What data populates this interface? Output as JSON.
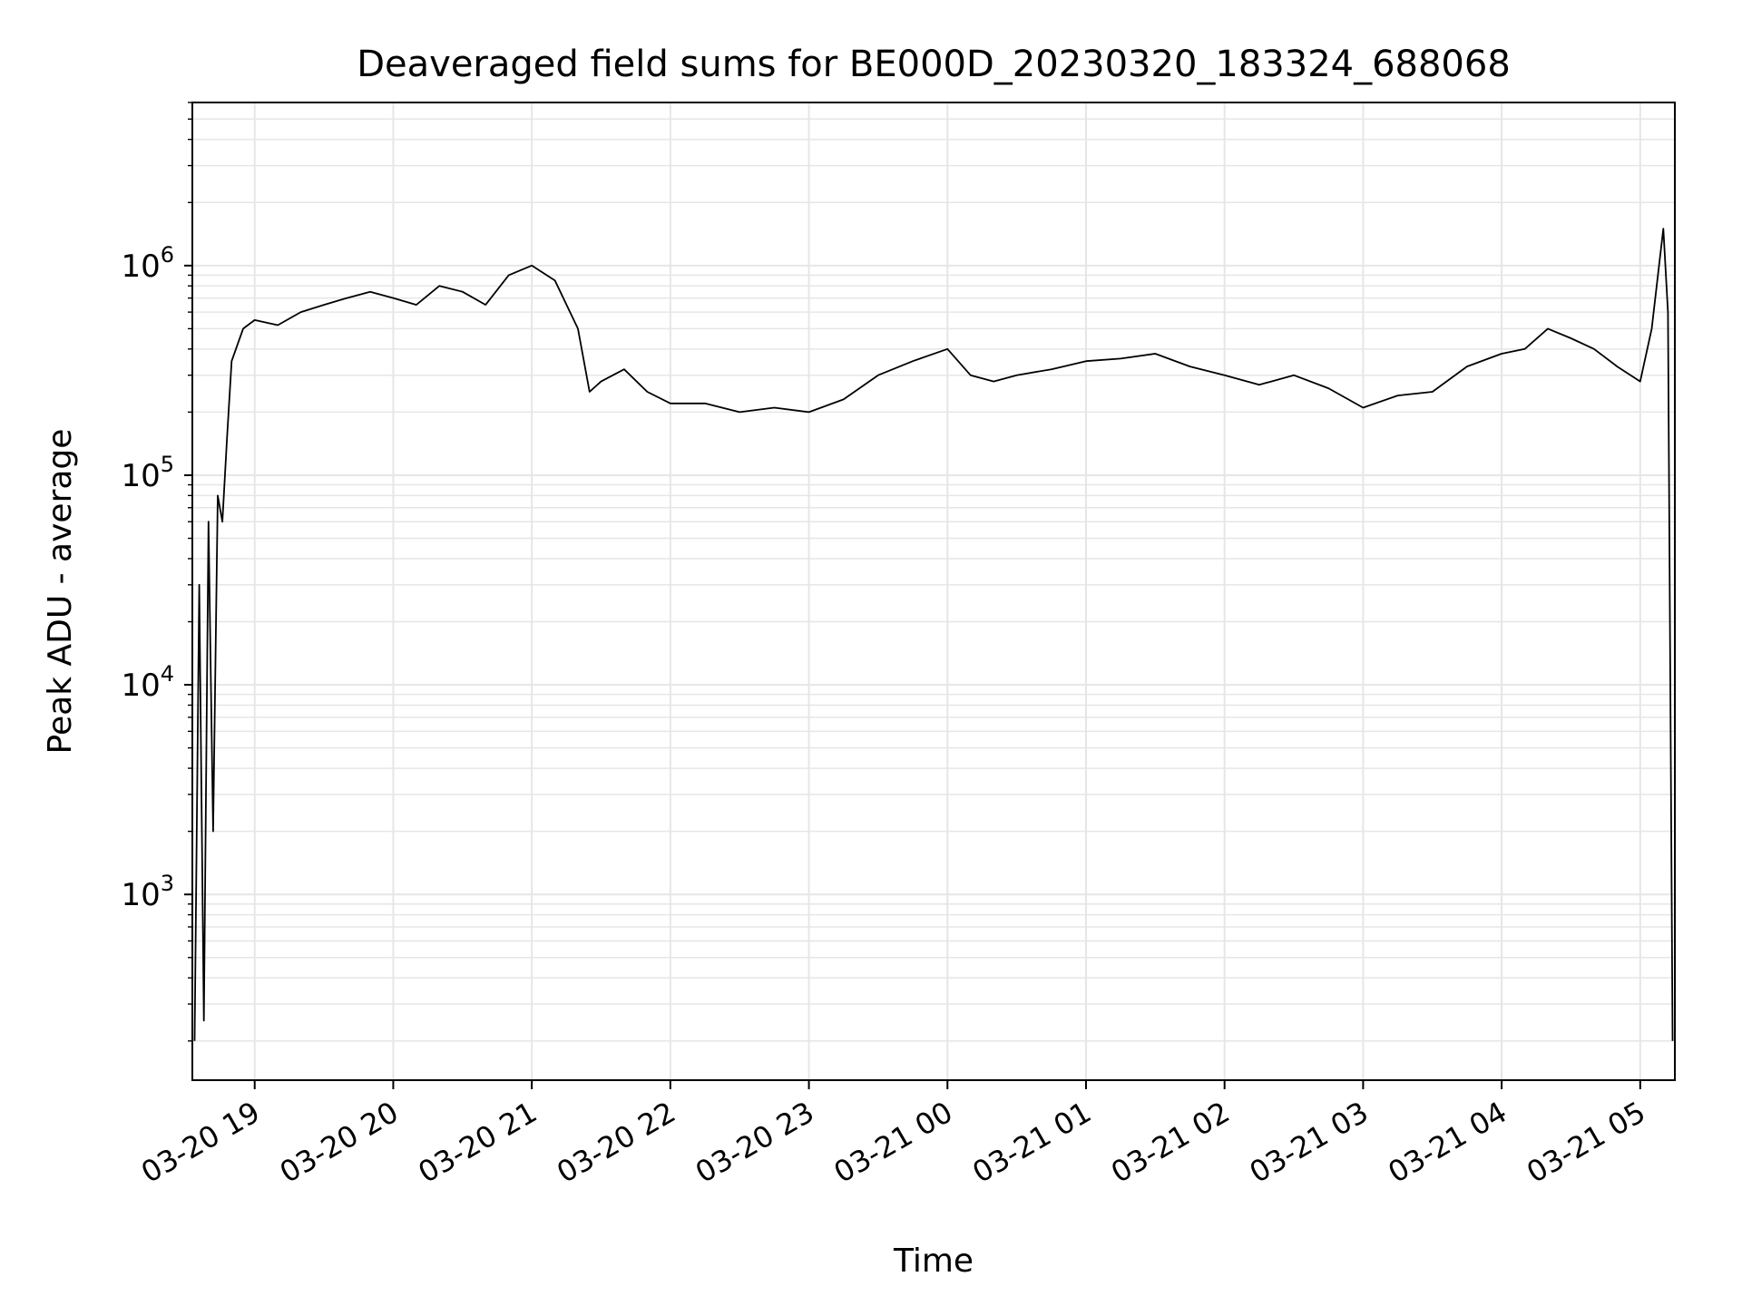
{
  "chart_data": {
    "type": "line",
    "title": "Deaveraged field sums for BE000D_20230320_183324_688068",
    "xlabel": "Time",
    "ylabel": "Peak ADU - average",
    "yscale": "log",
    "ylim": [
      130,
      6000000
    ],
    "xlim": [
      "2023-03-20 18:33",
      "2023-03-21 05:15"
    ],
    "grid": true,
    "line_color": "#000000",
    "grid_color": "#e6e6e6",
    "x_ticks": [
      {
        "t": "2023-03-20 19:00",
        "label": "03-20 19"
      },
      {
        "t": "2023-03-20 20:00",
        "label": "03-20 20"
      },
      {
        "t": "2023-03-20 21:00",
        "label": "03-20 21"
      },
      {
        "t": "2023-03-20 22:00",
        "label": "03-20 22"
      },
      {
        "t": "2023-03-20 23:00",
        "label": "03-20 23"
      },
      {
        "t": "2023-03-21 00:00",
        "label": "03-21 00"
      },
      {
        "t": "2023-03-21 01:00",
        "label": "03-21 01"
      },
      {
        "t": "2023-03-21 02:00",
        "label": "03-21 02"
      },
      {
        "t": "2023-03-21 03:00",
        "label": "03-21 03"
      },
      {
        "t": "2023-03-21 04:00",
        "label": "03-21 04"
      },
      {
        "t": "2023-03-21 05:00",
        "label": "03-21 05"
      }
    ],
    "y_ticks": [
      {
        "value": 1000,
        "base": "10",
        "exp": "3"
      },
      {
        "value": 10000,
        "base": "10",
        "exp": "4"
      },
      {
        "value": 100000,
        "base": "10",
        "exp": "5"
      },
      {
        "value": 1000000,
        "base": "10",
        "exp": "6"
      }
    ],
    "series": [
      {
        "x": [
          "2023-03-20 18:34",
          "2023-03-20 18:36",
          "2023-03-20 18:38",
          "2023-03-20 18:40",
          "2023-03-20 18:42",
          "2023-03-20 18:44",
          "2023-03-20 18:46",
          "2023-03-20 18:48",
          "2023-03-20 18:50",
          "2023-03-20 18:55",
          "2023-03-20 19:00",
          "2023-03-20 19:10",
          "2023-03-20 19:20",
          "2023-03-20 19:30",
          "2023-03-20 19:40",
          "2023-03-20 19:50",
          "2023-03-20 20:00",
          "2023-03-20 20:10",
          "2023-03-20 20:20",
          "2023-03-20 20:30",
          "2023-03-20 20:40",
          "2023-03-20 20:50",
          "2023-03-20 21:00",
          "2023-03-20 21:10",
          "2023-03-20 21:20",
          "2023-03-20 21:25",
          "2023-03-20 21:30",
          "2023-03-20 21:40",
          "2023-03-20 21:50",
          "2023-03-20 22:00",
          "2023-03-20 22:15",
          "2023-03-20 22:30",
          "2023-03-20 22:45",
          "2023-03-20 23:00",
          "2023-03-20 23:15",
          "2023-03-20 23:30",
          "2023-03-20 23:45",
          "2023-03-21 00:00",
          "2023-03-21 00:10",
          "2023-03-21 00:20",
          "2023-03-21 00:30",
          "2023-03-21 00:45",
          "2023-03-21 01:00",
          "2023-03-21 01:15",
          "2023-03-21 01:30",
          "2023-03-21 01:45",
          "2023-03-21 02:00",
          "2023-03-21 02:15",
          "2023-03-21 02:30",
          "2023-03-21 02:45",
          "2023-03-21 03:00",
          "2023-03-21 03:15",
          "2023-03-21 03:30",
          "2023-03-21 03:45",
          "2023-03-21 04:00",
          "2023-03-21 04:10",
          "2023-03-21 04:20",
          "2023-03-21 04:30",
          "2023-03-21 04:40",
          "2023-03-21 04:50",
          "2023-03-21 05:00",
          "2023-03-21 05:05",
          "2023-03-21 05:10",
          "2023-03-21 05:12",
          "2023-03-21 05:14"
        ],
        "y": [
          200,
          30000,
          250,
          60000,
          2000,
          80000,
          60000,
          150000,
          350000,
          500000,
          550000,
          520000,
          600000,
          650000,
          700000,
          750000,
          700000,
          650000,
          800000,
          750000,
          650000,
          900000,
          1000000,
          850000,
          500000,
          250000,
          280000,
          320000,
          250000,
          220000,
          220000,
          200000,
          210000,
          200000,
          230000,
          300000,
          350000,
          400000,
          300000,
          280000,
          300000,
          320000,
          350000,
          360000,
          380000,
          330000,
          300000,
          270000,
          300000,
          260000,
          210000,
          240000,
          250000,
          330000,
          380000,
          400000,
          500000,
          450000,
          400000,
          330000,
          280000,
          500000,
          1500000,
          600000,
          200
        ]
      }
    ]
  }
}
